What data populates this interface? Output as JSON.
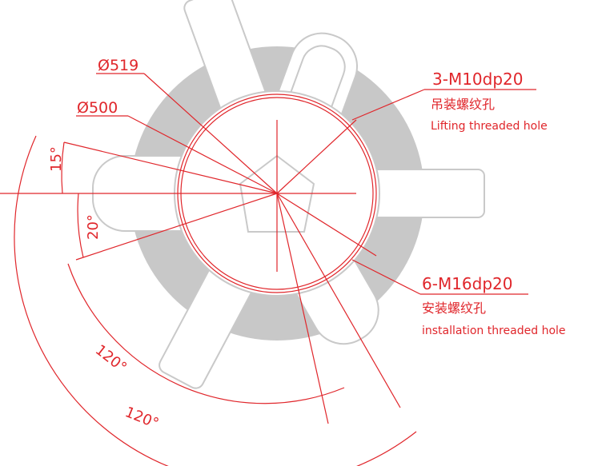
{
  "dimensions": {
    "diameter_outer": "Ø519",
    "diameter_inner": "Ø500",
    "angle_15": "15°",
    "angle_20": "20°",
    "angle_120_inner": "120°",
    "angle_120_outer": "120°"
  },
  "callouts": [
    {
      "spec": "3-M10dp20",
      "label_cn": "吊装螺纹孔",
      "label_en": "Lifting threaded hole"
    },
    {
      "spec": "6-M16dp20",
      "label_cn": "安装螺纹孔",
      "label_en": "installation threaded hole"
    }
  ]
}
